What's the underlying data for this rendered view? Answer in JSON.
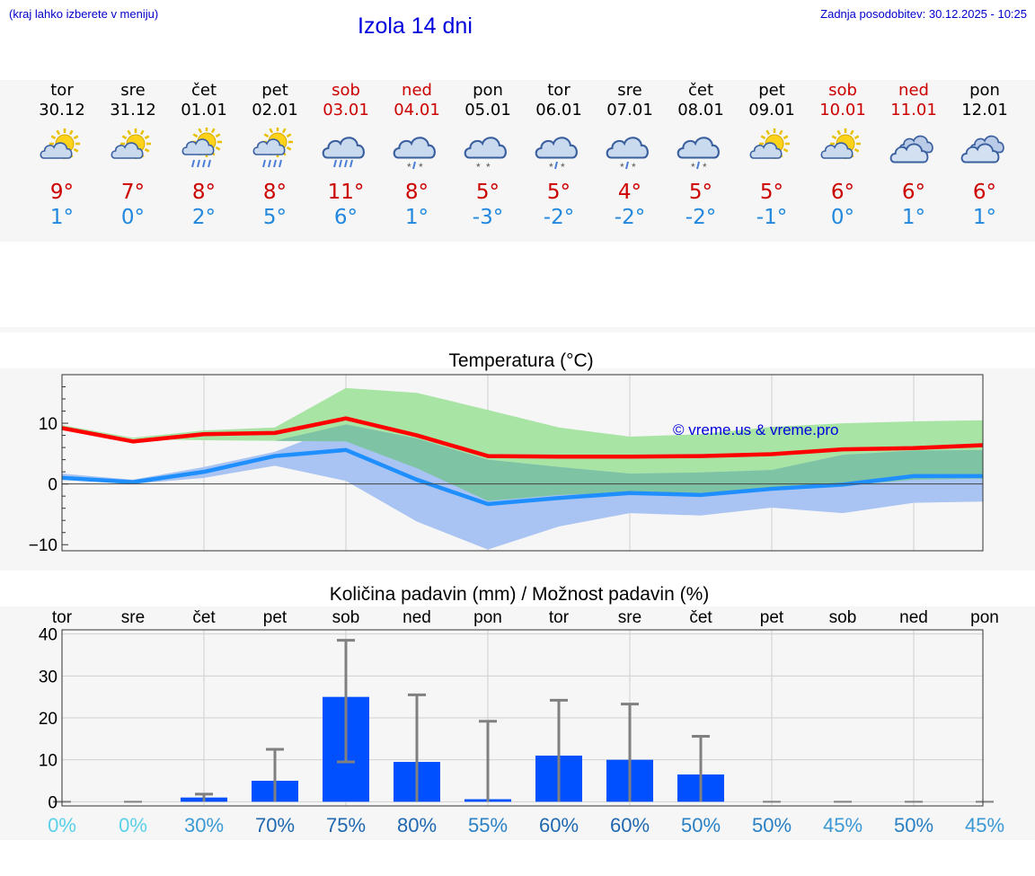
{
  "header": {
    "hint": "(kraj lahko izberete v meniju)",
    "title": "Izola 14 dni",
    "updated": "Zadnja posodobitev: 30.12.2025 - 10:25"
  },
  "days": [
    {
      "name": "tor",
      "date": "30.12",
      "weekend": false,
      "icon": "sun-cloud-icon",
      "max": "9°",
      "min": "1°"
    },
    {
      "name": "sre",
      "date": "31.12",
      "weekend": false,
      "icon": "sun-cloud-icon",
      "max": "7°",
      "min": "0°"
    },
    {
      "name": "čet",
      "date": "01.01",
      "weekend": false,
      "icon": "sun-cloud-rain-icon",
      "max": "8°",
      "min": "2°"
    },
    {
      "name": "pet",
      "date": "02.01",
      "weekend": false,
      "icon": "sun-cloud-rain-icon",
      "max": "8°",
      "min": "5°"
    },
    {
      "name": "sob",
      "date": "03.01",
      "weekend": true,
      "icon": "cloud-rain-icon",
      "max": "11°",
      "min": "6°"
    },
    {
      "name": "ned",
      "date": "04.01",
      "weekend": true,
      "icon": "cloud-sleet-icon",
      "max": "8°",
      "min": "1°"
    },
    {
      "name": "pon",
      "date": "05.01",
      "weekend": false,
      "icon": "cloud-snow-icon",
      "max": "5°",
      "min": "-3°"
    },
    {
      "name": "tor",
      "date": "06.01",
      "weekend": false,
      "icon": "cloud-sleet-icon",
      "max": "5°",
      "min": "-2°"
    },
    {
      "name": "sre",
      "date": "07.01",
      "weekend": false,
      "icon": "cloud-sleet-icon",
      "max": "4°",
      "min": "-2°"
    },
    {
      "name": "čet",
      "date": "08.01",
      "weekend": false,
      "icon": "cloud-sleet-icon",
      "max": "5°",
      "min": "-2°"
    },
    {
      "name": "pet",
      "date": "09.01",
      "weekend": false,
      "icon": "sun-cloud-icon",
      "max": "5°",
      "min": "-1°"
    },
    {
      "name": "sob",
      "date": "10.01",
      "weekend": true,
      "icon": "sun-cloud-icon",
      "max": "6°",
      "min": "0°"
    },
    {
      "name": "ned",
      "date": "11.01",
      "weekend": true,
      "icon": "cloudy-icon",
      "max": "6°",
      "min": "1°"
    },
    {
      "name": "pon",
      "date": "12.01",
      "weekend": false,
      "icon": "cloudy-icon",
      "max": "6°",
      "min": "1°"
    }
  ],
  "colors": {
    "max_line": "#ff0000",
    "min_line": "#1f8fff",
    "max_band": "#a8e4a4",
    "min_band": "#a9c4f2",
    "overlap_band": "#7dc3a4",
    "bar": "#0050ff",
    "error_bar": "#808080",
    "watermark": "#0000dd"
  },
  "chart_data": [
    {
      "type": "line",
      "title": "Temperatura (°C)",
      "watermark": "© vreme.us & vreme.pro",
      "ylim": [
        -11,
        18
      ],
      "yticks": [
        -10,
        0,
        10
      ],
      "ytick_labels": [
        "−10",
        "0",
        "10"
      ],
      "x": [
        "30.12",
        "31.12",
        "01.01",
        "02.01",
        "03.01",
        "04.01",
        "05.01",
        "06.01",
        "07.01",
        "08.01",
        "09.01",
        "10.01",
        "11.01",
        "12.01"
      ],
      "series": [
        {
          "name": "max",
          "values": [
            9.2,
            7.0,
            8.2,
            8.4,
            10.8,
            8.0,
            4.6,
            4.5,
            4.5,
            4.6,
            4.9,
            5.7,
            5.9,
            6.4
          ],
          "band_low": [
            9.3,
            7.4,
            7.2,
            7.1,
            7.0,
            2.6,
            -2.8,
            -1.8,
            -1.4,
            -1.5,
            -1.0,
            -0.3,
            0.7,
            0.9
          ],
          "band_high": [
            9.7,
            7.6,
            8.8,
            9.3,
            15.8,
            15.0,
            12.2,
            9.3,
            7.8,
            8.2,
            9.4,
            10.0,
            10.3,
            10.5
          ]
        },
        {
          "name": "min",
          "values": [
            1.0,
            0.3,
            2.0,
            4.6,
            5.6,
            0.7,
            -3.3,
            -2.3,
            -1.5,
            -1.8,
            -0.8,
            -0.1,
            1.3,
            1.3
          ],
          "band_low": [
            0.9,
            0.0,
            1.0,
            3.0,
            0.5,
            -6.2,
            -10.8,
            -7.0,
            -4.8,
            -5.2,
            -3.9,
            -4.8,
            -3.1,
            -2.9
          ],
          "band_high": [
            1.7,
            0.7,
            2.8,
            5.3,
            9.8,
            7.5,
            4.0,
            2.8,
            1.7,
            1.9,
            2.3,
            4.8,
            5.5,
            5.6
          ]
        }
      ]
    },
    {
      "type": "bar",
      "title": "Količina padavin (mm) / Možnost padavin (%)",
      "categories": [
        "tor",
        "sre",
        "čet",
        "pet",
        "sob",
        "ned",
        "pon",
        "tor",
        "sre",
        "čet",
        "pet",
        "sob",
        "ned",
        "pon"
      ],
      "ylim": [
        -1,
        41
      ],
      "yticks": [
        0,
        10,
        20,
        30,
        40
      ],
      "values": [
        0,
        0,
        1.0,
        5.0,
        25.0,
        9.5,
        0.6,
        11.0,
        10.0,
        6.5,
        0,
        0,
        0,
        0
      ],
      "err_low": [
        0,
        0,
        0,
        0,
        9.5,
        0,
        0,
        0,
        0,
        0,
        0,
        0,
        0,
        0
      ],
      "err_high": [
        0,
        0,
        1.8,
        12.5,
        38.5,
        25.5,
        19.2,
        24.2,
        23.3,
        15.6,
        0,
        0,
        0,
        0
      ],
      "probability": [
        "0%",
        "0%",
        "30%",
        "70%",
        "75%",
        "80%",
        "55%",
        "60%",
        "60%",
        "50%",
        "50%",
        "45%",
        "50%",
        "45%"
      ],
      "prob_colors": [
        "#5ad0e8",
        "#5ad0e8",
        "#3a98d4",
        "#1f68b0",
        "#1f68b0",
        "#1f68b0",
        "#2a80c4",
        "#1f68b0",
        "#1f68b0",
        "#2a80c4",
        "#2a80c4",
        "#3a98d4",
        "#2a80c4",
        "#3a98d4"
      ]
    }
  ]
}
